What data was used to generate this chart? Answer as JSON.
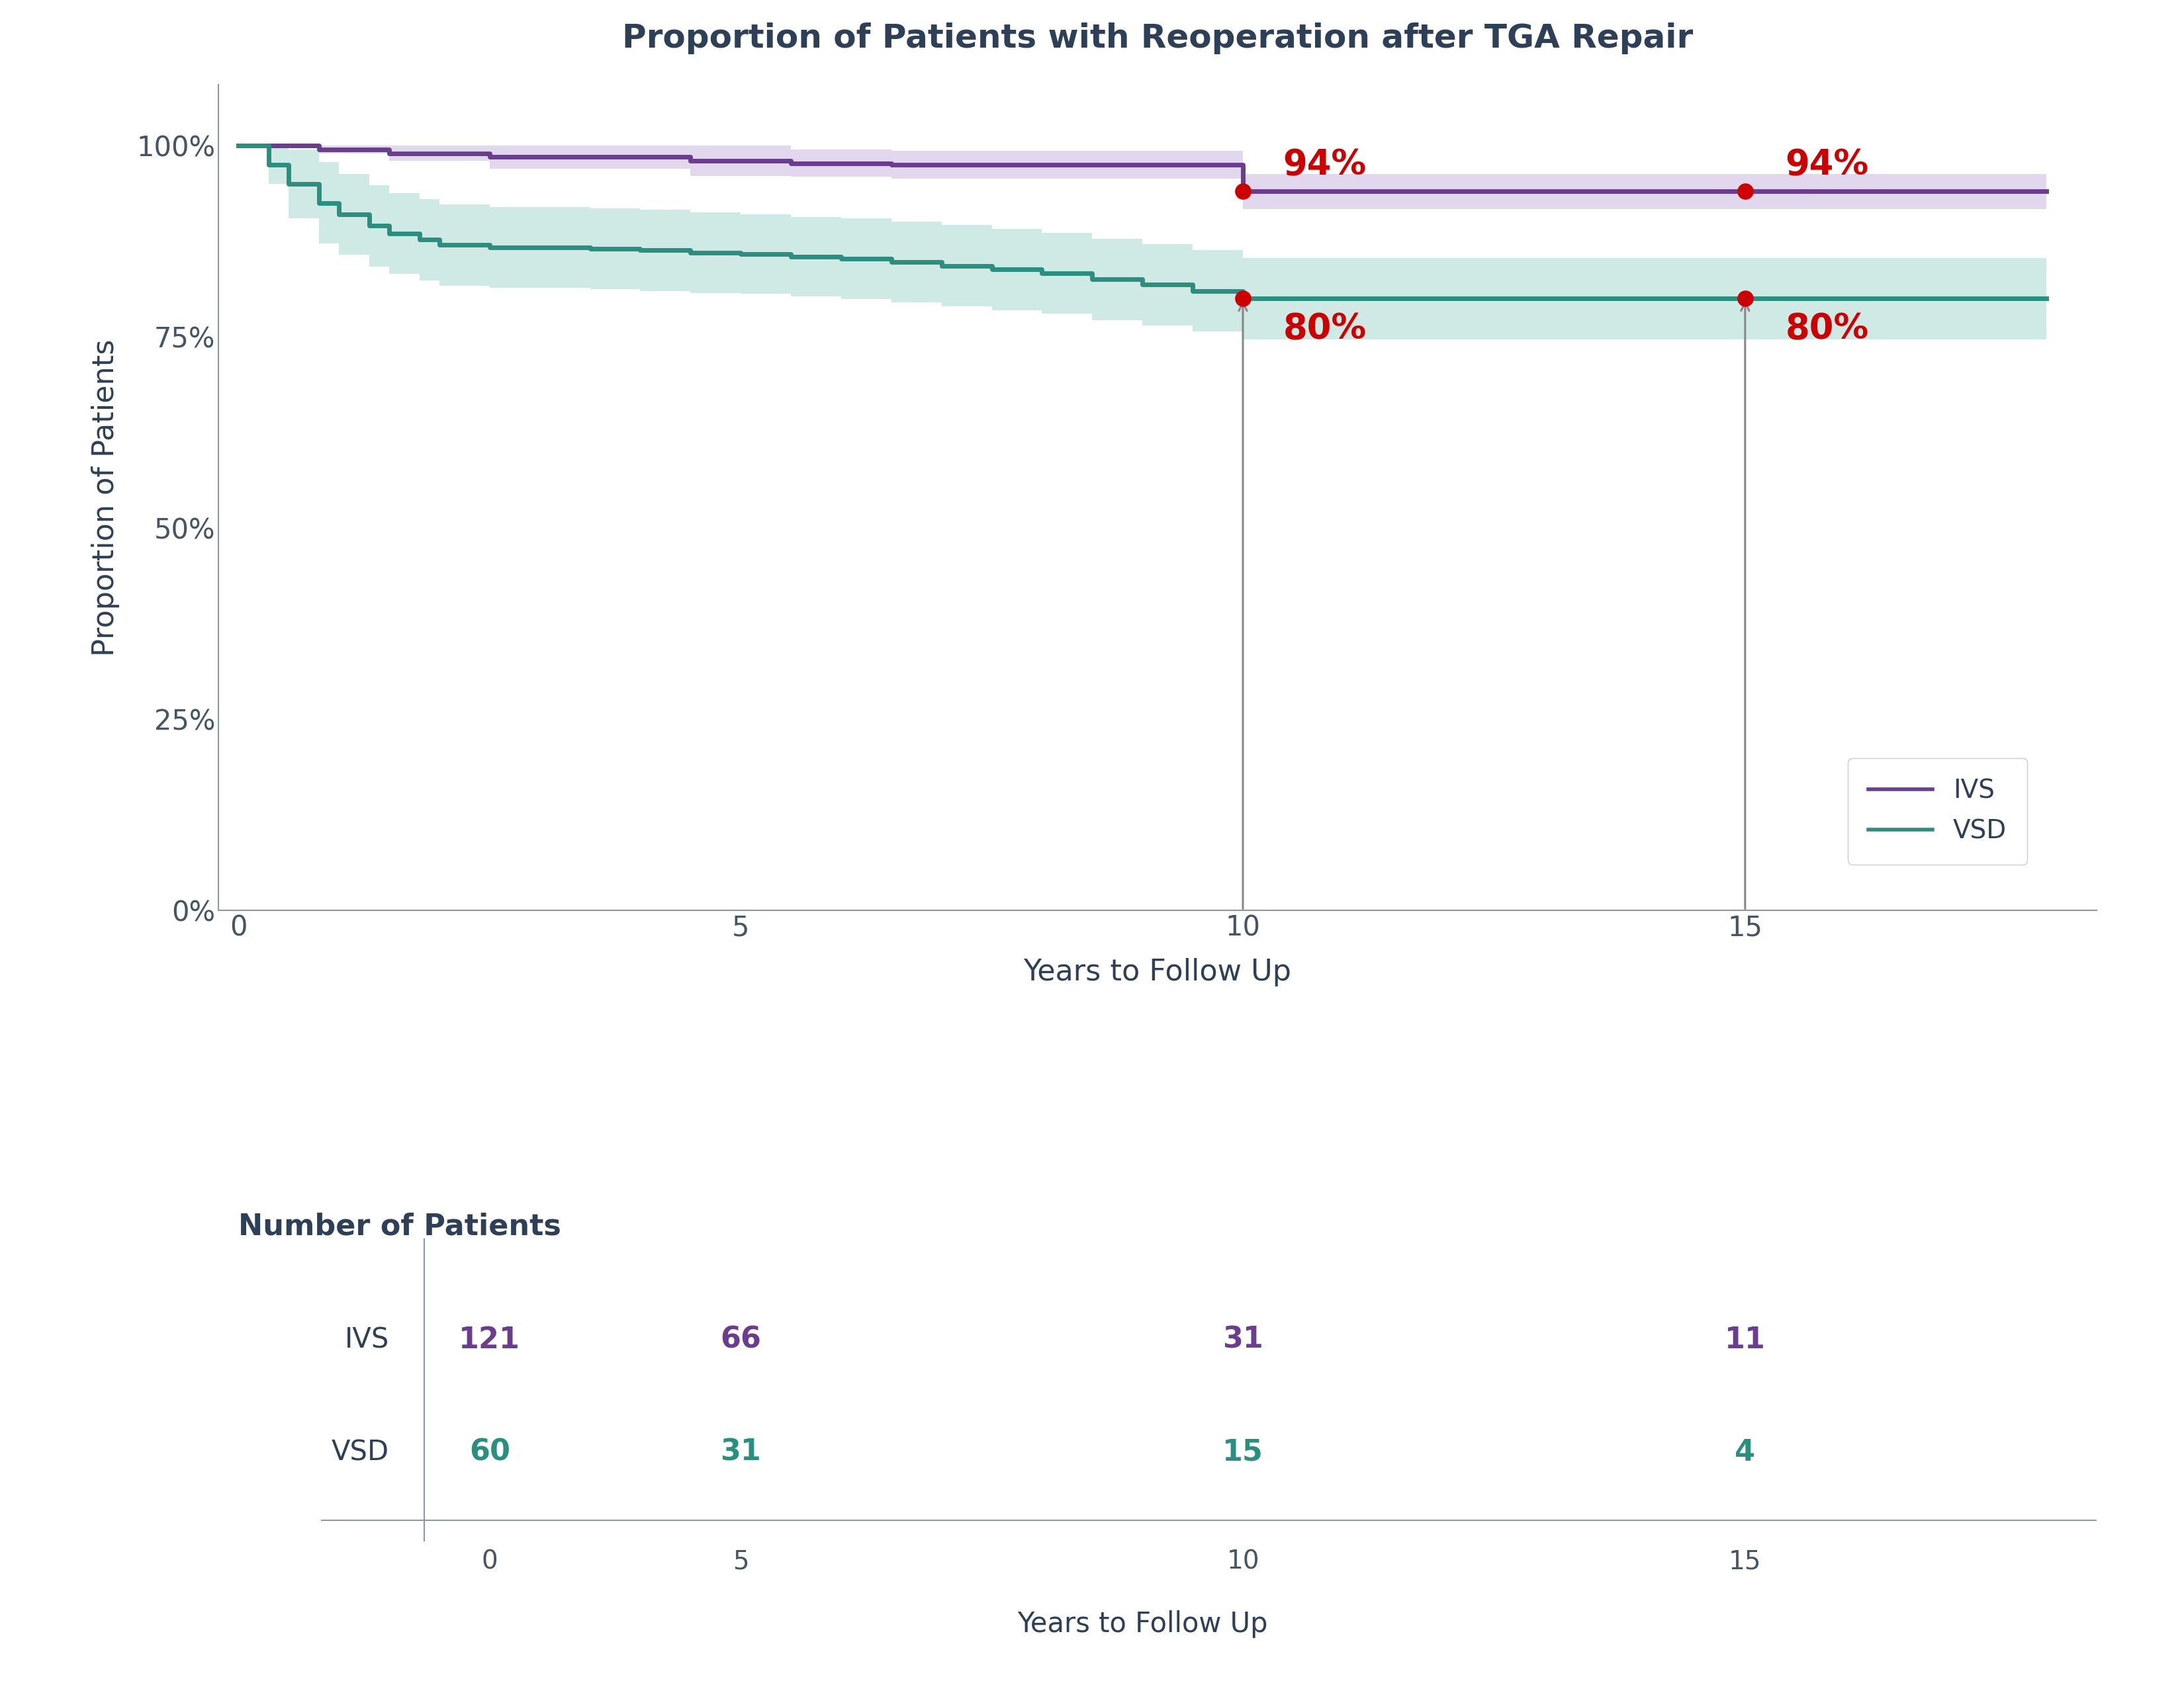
{
  "title": "Proportion of Patients with Reoperation after TGA Repair",
  "title_color": "#2d4057",
  "title_fontsize": 36,
  "ivs_x": [
    0,
    0.3,
    0.5,
    0.8,
    1.0,
    1.5,
    2.0,
    2.5,
    3.0,
    3.5,
    4.0,
    4.5,
    5.0,
    5.5,
    6.0,
    6.5,
    7.0,
    7.5,
    8.0,
    8.5,
    9.0,
    9.5,
    10.0,
    10.5,
    11.0,
    12.0,
    13.0,
    14.0,
    15.0,
    16.0,
    17.0,
    18.0
  ],
  "ivs_y": [
    1.0,
    1.0,
    1.0,
    0.995,
    0.995,
    0.99,
    0.99,
    0.985,
    0.985,
    0.985,
    0.985,
    0.98,
    0.98,
    0.977,
    0.977,
    0.975,
    0.975,
    0.975,
    0.975,
    0.975,
    0.975,
    0.975,
    0.94,
    0.94,
    0.94,
    0.94,
    0.94,
    0.94,
    0.94,
    0.94,
    0.94,
    0.94
  ],
  "ivs_ci_upper": [
    1.0,
    1.0,
    1.0,
    1.0,
    1.0,
    1.0,
    1.0,
    1.0,
    1.0,
    1.0,
    1.0,
    1.0,
    1.0,
    0.995,
    0.995,
    0.993,
    0.993,
    0.993,
    0.993,
    0.993,
    0.993,
    0.993,
    0.963,
    0.963,
    0.963,
    0.963,
    0.963,
    0.963,
    0.963,
    0.963,
    0.963,
    0.963
  ],
  "ivs_ci_lower": [
    1.0,
    1.0,
    1.0,
    0.99,
    0.99,
    0.98,
    0.98,
    0.97,
    0.97,
    0.97,
    0.97,
    0.96,
    0.96,
    0.959,
    0.959,
    0.957,
    0.957,
    0.957,
    0.957,
    0.957,
    0.957,
    0.957,
    0.917,
    0.917,
    0.917,
    0.917,
    0.917,
    0.917,
    0.917,
    0.917,
    0.917,
    0.917
  ],
  "vsd_x": [
    0,
    0.3,
    0.5,
    0.8,
    1.0,
    1.3,
    1.5,
    1.8,
    2.0,
    2.5,
    3.0,
    3.5,
    4.0,
    4.5,
    5.0,
    5.5,
    6.0,
    6.5,
    7.0,
    7.5,
    8.0,
    8.5,
    9.0,
    9.5,
    10.0,
    11.0,
    12.0,
    13.0,
    14.0,
    15.0,
    16.0,
    17.0,
    18.0
  ],
  "vsd_y": [
    1.0,
    0.975,
    0.95,
    0.925,
    0.91,
    0.895,
    0.885,
    0.877,
    0.87,
    0.867,
    0.867,
    0.865,
    0.863,
    0.86,
    0.858,
    0.855,
    0.852,
    0.848,
    0.843,
    0.838,
    0.833,
    0.825,
    0.818,
    0.81,
    0.8,
    0.8,
    0.8,
    0.8,
    0.8,
    0.8,
    0.8,
    0.8,
    0.8
  ],
  "vsd_ci_upper": [
    1.0,
    1.0,
    0.995,
    0.978,
    0.963,
    0.948,
    0.938,
    0.93,
    0.923,
    0.92,
    0.92,
    0.918,
    0.916,
    0.913,
    0.91,
    0.907,
    0.905,
    0.901,
    0.896,
    0.891,
    0.886,
    0.878,
    0.871,
    0.863,
    0.853,
    0.853,
    0.853,
    0.853,
    0.853,
    0.853,
    0.853,
    0.853,
    0.853
  ],
  "vsd_ci_lower": [
    1.0,
    0.95,
    0.905,
    0.872,
    0.857,
    0.842,
    0.832,
    0.824,
    0.817,
    0.814,
    0.814,
    0.812,
    0.81,
    0.807,
    0.806,
    0.803,
    0.799,
    0.795,
    0.79,
    0.785,
    0.78,
    0.772,
    0.765,
    0.757,
    0.747,
    0.747,
    0.747,
    0.747,
    0.747,
    0.747,
    0.747,
    0.747,
    0.747
  ],
  "ivs_color": "#6a3d8f",
  "vsd_color": "#2a8f7f",
  "ivs_ci_color": "#c9b8e0",
  "vsd_ci_color": "#a8d8d0",
  "annotation_color": "#cc0000",
  "arrow_color": "#888888",
  "xlabel": "Years to Follow Up",
  "ylabel": "Proportion of Patients",
  "xlim": [
    -0.2,
    18.5
  ],
  "ylim": [
    0,
    1.08
  ],
  "xticks": [
    0,
    5,
    10,
    15
  ],
  "yticks": [
    0,
    0.25,
    0.5,
    0.75,
    1.0
  ],
  "ytick_labels": [
    "0%",
    "25%",
    "50%",
    "75%",
    "100%"
  ],
  "table_title": "Number of Patients",
  "table_rows": [
    "IVS",
    "VSD"
  ],
  "table_cols": [
    0,
    5,
    10,
    15
  ],
  "table_data": [
    [
      121,
      66,
      31,
      11
    ],
    [
      60,
      31,
      15,
      4
    ]
  ],
  "table_row_colors": [
    "#6a3d8f",
    "#2a8f7f"
  ],
  "bg_color": "#ffffff",
  "axis_color": "#8899aa",
  "tick_color": "#445566",
  "legend_edge": "#cccccc"
}
